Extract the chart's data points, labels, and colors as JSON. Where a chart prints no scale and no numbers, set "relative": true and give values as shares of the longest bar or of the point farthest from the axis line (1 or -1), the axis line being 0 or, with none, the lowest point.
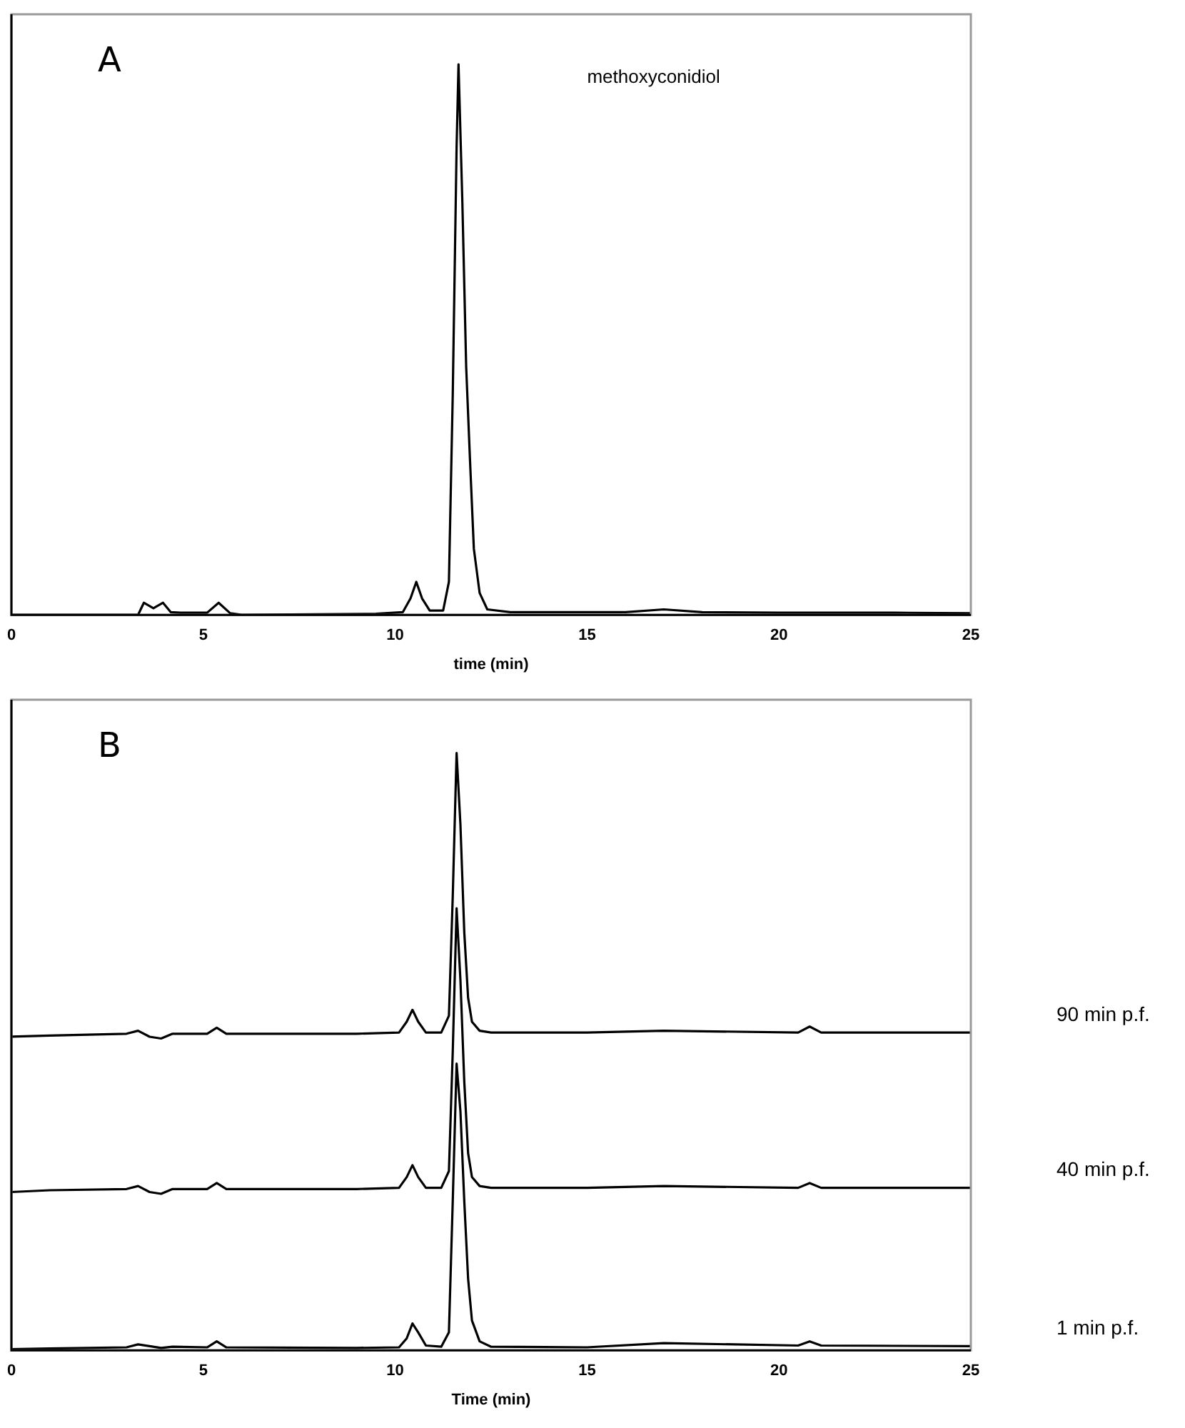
{
  "chart_data": [
    {
      "type": "line",
      "title": "A",
      "annotations": [
        "methoxyconidiol"
      ],
      "xlabel": "time (min)",
      "relative": true,
      "legend": false,
      "grid": false,
      "tick_labels": "x",
      "marker": "none",
      "xlim": [
        0,
        25
      ],
      "xticks": [
        0,
        5,
        10,
        15,
        20,
        25
      ],
      "x": [
        0,
        3.3,
        3.45,
        3.7,
        3.95,
        4.15,
        4.4,
        5.1,
        5.4,
        5.7,
        6,
        9.5,
        10.2,
        10.4,
        10.55,
        10.7,
        10.9,
        11.25,
        11.4,
        11.5,
        11.6,
        11.65,
        11.75,
        11.85,
        11.95,
        12.05,
        12.2,
        12.4,
        13,
        16,
        17,
        18,
        20,
        23,
        25
      ],
      "series": [
        {
          "color": "#000000",
          "values": [
            0,
            0,
            0.022,
            0.012,
            0.022,
            0.005,
            0.004,
            0.004,
            0.022,
            0.003,
            0,
            0.002,
            0.005,
            0.03,
            0.06,
            0.03,
            0.008,
            0.008,
            0.06,
            0.4,
            0.85,
            1,
            0.75,
            0.45,
            0.28,
            0.12,
            0.04,
            0.01,
            0.005,
            0.005,
            0.01,
            0.005,
            0.004,
            0.004,
            0.003
          ]
        }
      ]
    },
    {
      "type": "line",
      "title": "B",
      "xlabel": "Time (min)",
      "relative": true,
      "legend": false,
      "grid": false,
      "tick_labels": "x",
      "marker": "none",
      "xlim": [
        0,
        25
      ],
      "xticks": [
        0,
        5,
        10,
        15,
        20,
        25
      ],
      "x": [
        0,
        1,
        3,
        3.3,
        3.6,
        3.9,
        4.2,
        5.1,
        5.35,
        5.6,
        9,
        10.1,
        10.3,
        10.45,
        10.6,
        10.8,
        11.2,
        11.4,
        11.5,
        11.6,
        11.7,
        11.8,
        11.9,
        12.0,
        12.2,
        12.5,
        15,
        17,
        20.5,
        20.8,
        21.1,
        25
      ],
      "series": [
        {
          "name": "90 min p.f.",
          "color": "#000000",
          "values": [
            0.525,
            0.527,
            0.53,
            0.535,
            0.525,
            0.522,
            0.53,
            0.53,
            0.54,
            0.53,
            0.53,
            0.532,
            0.55,
            0.57,
            0.55,
            0.532,
            0.532,
            0.56,
            0.76,
            1.0,
            0.88,
            0.7,
            0.59,
            0.55,
            0.535,
            0.532,
            0.532,
            0.535,
            0.532,
            0.542,
            0.532,
            0.532
          ]
        },
        {
          "name": "40 min p.f.",
          "color": "#000000",
          "values": [
            0.265,
            0.268,
            0.27,
            0.275,
            0.265,
            0.262,
            0.27,
            0.27,
            0.28,
            0.27,
            0.27,
            0.272,
            0.29,
            0.31,
            0.29,
            0.272,
            0.272,
            0.3,
            0.5,
            0.74,
            0.62,
            0.45,
            0.33,
            0.29,
            0.275,
            0.272,
            0.272,
            0.275,
            0.272,
            0.28,
            0.272,
            0.272
          ]
        },
        {
          "name": "1 min p.f.",
          "color": "#000000",
          "values": [
            0.002,
            0.003,
            0.005,
            0.01,
            0.007,
            0.004,
            0.006,
            0.005,
            0.015,
            0.005,
            0.004,
            0.005,
            0.02,
            0.045,
            0.03,
            0.008,
            0.006,
            0.03,
            0.25,
            0.48,
            0.4,
            0.25,
            0.12,
            0.05,
            0.015,
            0.006,
            0.005,
            0.012,
            0.008,
            0.015,
            0.008,
            0.007
          ]
        }
      ]
    }
  ]
}
